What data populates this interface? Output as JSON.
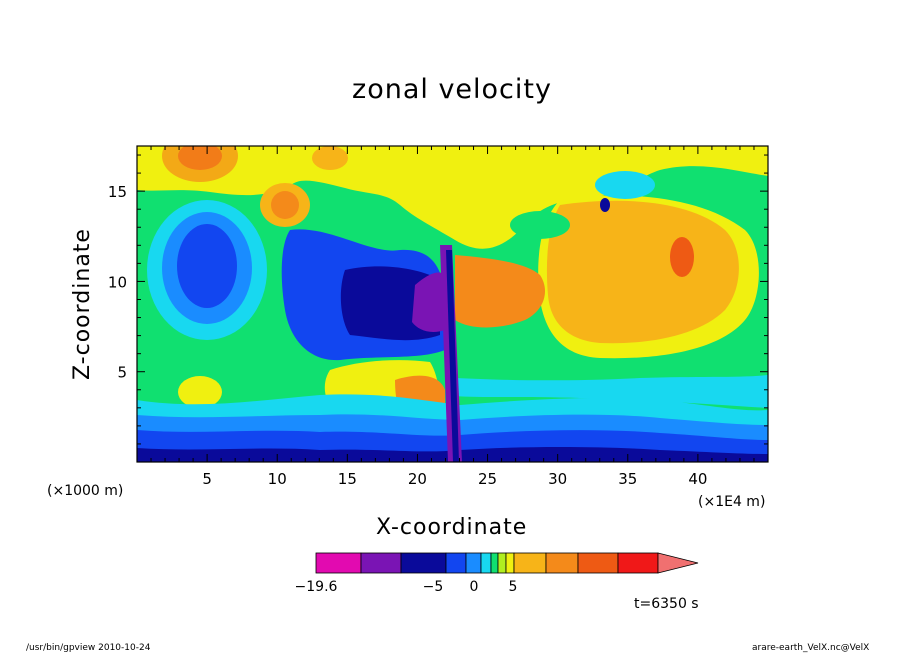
{
  "chart_data": {
    "type": "heatmap",
    "title": "zonal velocity",
    "xlabel": "X-coordinate",
    "ylabel": "Z-coordinate",
    "x_units_left": "(×1000 m)",
    "x_units_right": "(×1E4 m)",
    "xlim": [
      0,
      45
    ],
    "ylim": [
      0,
      17.5
    ],
    "x_ticks": [
      5,
      10,
      15,
      20,
      25,
      30,
      35,
      40
    ],
    "y_ticks": [
      5,
      10,
      15
    ],
    "colorbar": {
      "labels": [
        "−19.6",
        "−5",
        "0",
        "5"
      ],
      "label_values": [
        -19.6,
        -5,
        0,
        5
      ],
      "colors": [
        "#e20ab0",
        "#7a14b4",
        "#0a0a9a",
        "#1246f0",
        "#1a8cff",
        "#18d8f0",
        "#10e070",
        "#b0ee20",
        "#f0f010",
        "#f7b418",
        "#f48a1a",
        "#ee5a14",
        "#f01818",
        "#f07070"
      ]
    }
  },
  "time_label": "t=6350 s",
  "footer_left": "/usr/bin/gpview   2010-10-24",
  "footer_right": "arare-earth_VelX.nc@VelX"
}
